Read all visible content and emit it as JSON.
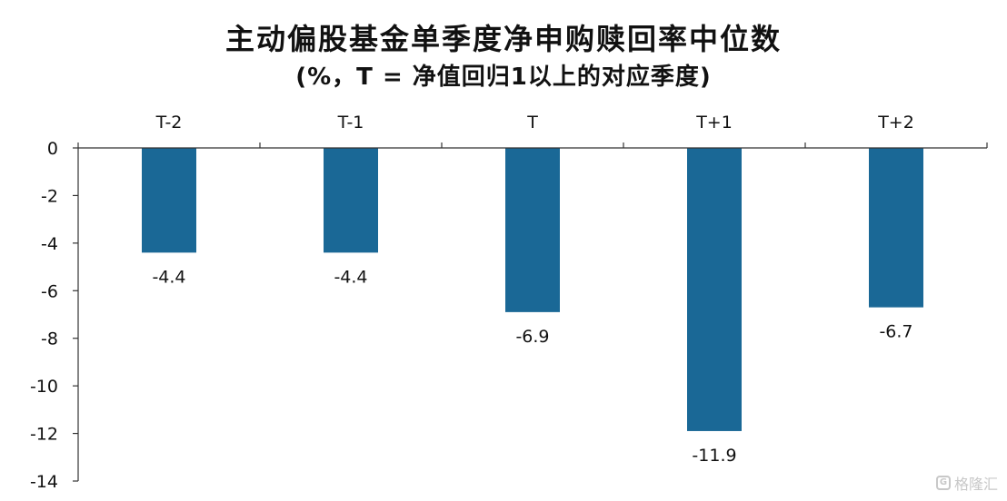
{
  "chart_data": {
    "type": "bar",
    "title": "主动偏股基金单季度净申购赎回率中位数",
    "subtitle": "(%，T = 净值回归1以上的对应季度)",
    "categories": [
      "T-2",
      "T-1",
      "T",
      "T+1",
      "T+2"
    ],
    "values": [
      -4.4,
      -4.4,
      -6.9,
      -11.9,
      -6.7
    ],
    "data_labels": [
      "-4.4",
      "-4.4",
      "-6.9",
      "-11.9",
      "-6.7"
    ],
    "y_ticks": [
      "0",
      "-2",
      "-4",
      "-6",
      "-8",
      "-10",
      "-12",
      "-14"
    ],
    "y_tick_values": [
      0,
      -2,
      -4,
      -6,
      -8,
      -10,
      -12,
      -14
    ],
    "ylim": [
      -14,
      0
    ],
    "category_axis_position": "top",
    "grid": false,
    "bar_color": "#1a6896",
    "axis_color": "#333333",
    "text_color": "#111111"
  },
  "watermark": {
    "icon": "g-logo-icon",
    "text": "格隆汇"
  }
}
